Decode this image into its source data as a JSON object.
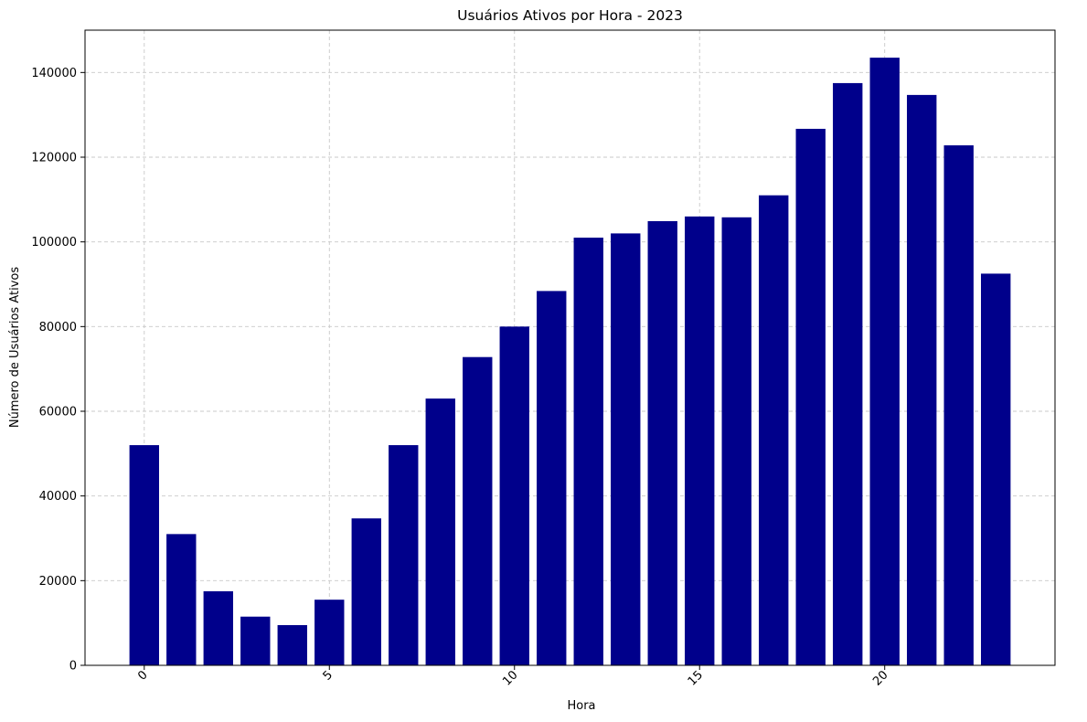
{
  "chart_data": {
    "type": "bar",
    "title": "Usuários Ativos por Hora - 2023",
    "xlabel": "Hora",
    "ylabel": "Número de Usuários Ativos",
    "x": [
      0,
      1,
      2,
      3,
      4,
      5,
      6,
      7,
      8,
      9,
      10,
      11,
      12,
      13,
      14,
      15,
      16,
      17,
      18,
      19,
      20,
      21,
      22,
      23
    ],
    "values": [
      52000,
      31000,
      17500,
      11500,
      9500,
      15500,
      34700,
      52000,
      63000,
      72800,
      80000,
      88400,
      101000,
      102000,
      104900,
      106000,
      105800,
      111000,
      126700,
      137500,
      143500,
      134700,
      122800,
      92500
    ],
    "xlim": [
      -1.6,
      24.6
    ],
    "ylim": [
      0,
      150000
    ],
    "xticks": [
      0,
      5,
      10,
      15,
      20
    ],
    "yticks": [
      0,
      20000,
      40000,
      60000,
      80000,
      100000,
      120000,
      140000
    ],
    "bar_color": "#00008b",
    "grid": true,
    "grid_style": "dashed"
  }
}
